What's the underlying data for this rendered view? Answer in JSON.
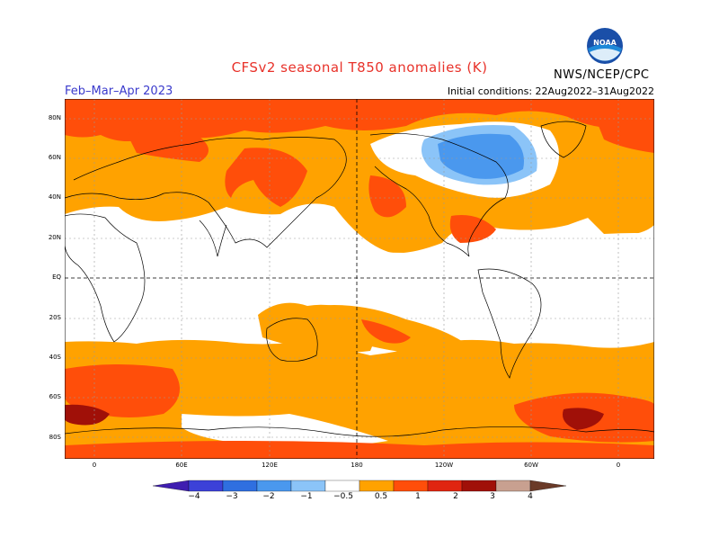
{
  "header": {
    "title": "CFSv2 seasonal T850 anomalies (K)",
    "season": "Feb–Mar–Apr 2023",
    "initial_conditions": "Initial conditions: 22Aug2022–31Aug2022",
    "agency": "NWS/NCEP/CPC",
    "logo_text": "NOAA"
  },
  "map": {
    "projection": "cylindrical-equidistant",
    "lat_labels": [
      "80N",
      "60N",
      "40N",
      "20N",
      "EQ",
      "20S",
      "40S",
      "60S",
      "80S"
    ],
    "lon_labels": [
      "0",
      "60E",
      "120E",
      "180",
      "120W",
      "60W",
      "0"
    ],
    "grid": true,
    "dashed_meridian": "180"
  },
  "colorbar": {
    "tick_labels": [
      "−4",
      "−3",
      "−2",
      "−1",
      "−0.5",
      "0.5",
      "1",
      "2",
      "3",
      "4"
    ],
    "colors": [
      "#3f1db0",
      "#3c41d8",
      "#2f6fe0",
      "#4a98ee",
      "#8bc4f8",
      "#ffffff",
      "#ffa200",
      "#ff4e0a",
      "#e02510",
      "#a01008",
      "#c8a090",
      "#6a3a28"
    ]
  }
}
